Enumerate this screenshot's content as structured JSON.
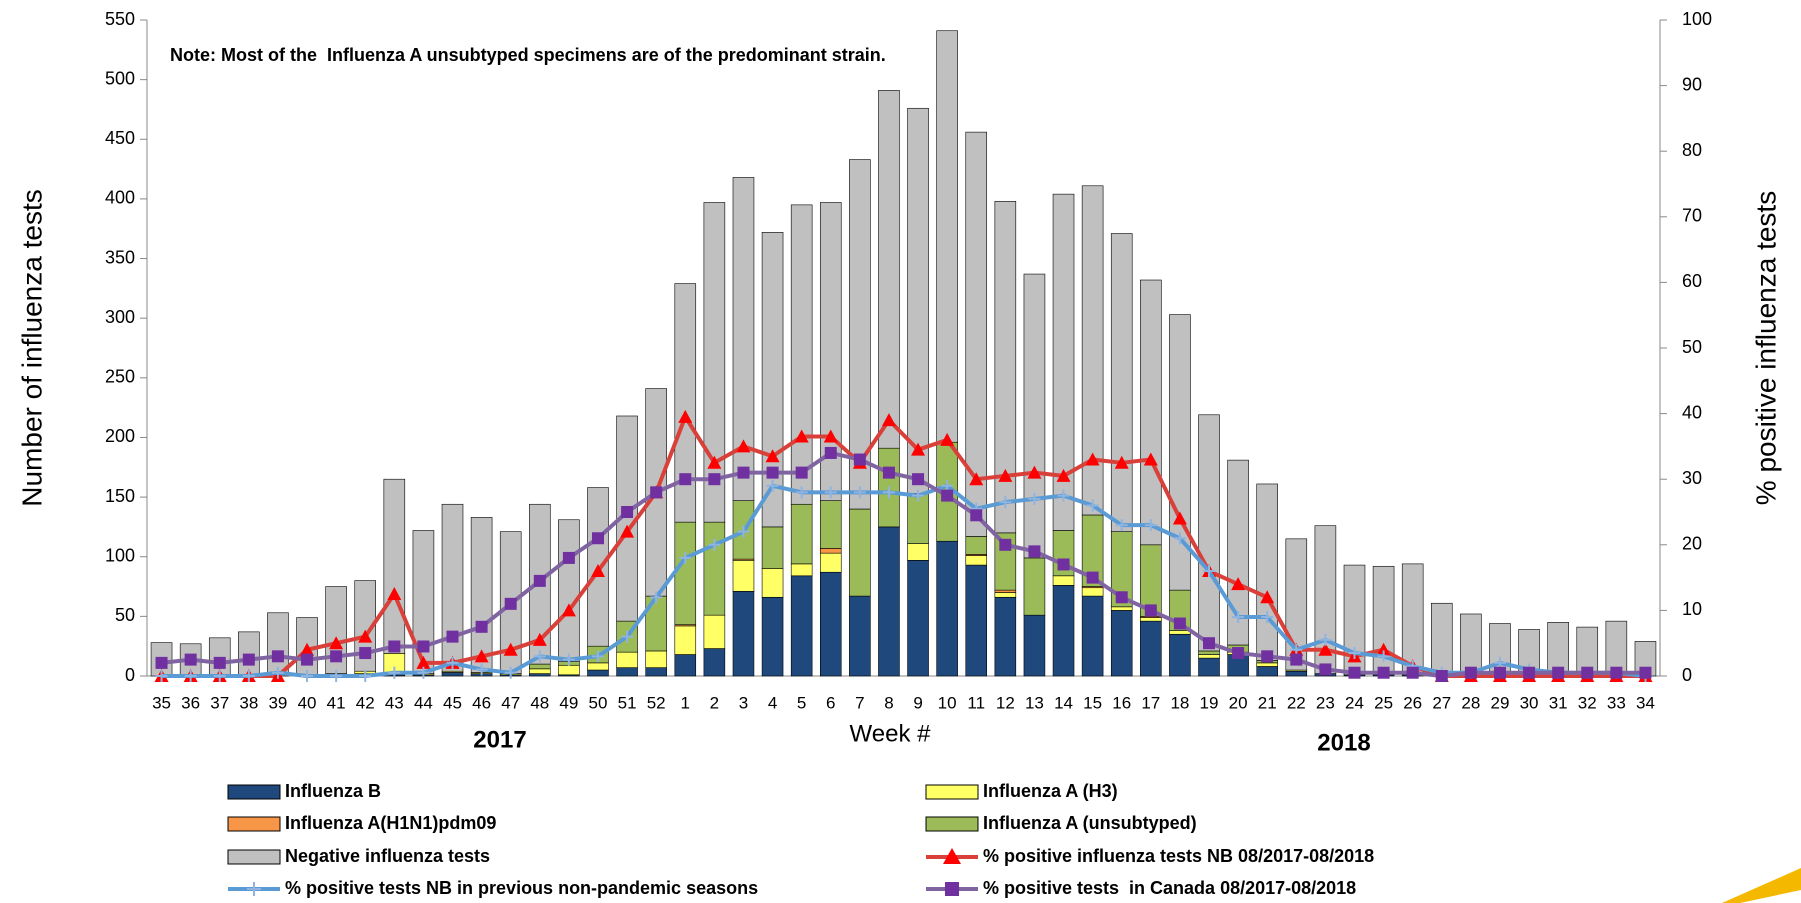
{
  "chart_data": {
    "type": "bar",
    "stacked": true,
    "note": "Note: Most of the  Influenza A unsubtyped specimens are of the predominant strain.",
    "x_label": "Week #",
    "y_label": "Number of influenza tests",
    "y2_label": "% positive influenza tests",
    "year_labels": [
      "2017",
      "2018"
    ],
    "categories": [
      "35",
      "36",
      "37",
      "38",
      "39",
      "40",
      "41",
      "42",
      "43",
      "44",
      "45",
      "46",
      "47",
      "48",
      "49",
      "50",
      "51",
      "52",
      "1",
      "2",
      "3",
      "4",
      "5",
      "6",
      "7",
      "8",
      "9",
      "10",
      "11",
      "12",
      "13",
      "14",
      "15",
      "16",
      "17",
      "18",
      "19",
      "20",
      "21",
      "22",
      "23",
      "24",
      "25",
      "26",
      "27",
      "28",
      "29",
      "30",
      "31",
      "32",
      "33",
      "34"
    ],
    "ylim": [
      0,
      550
    ],
    "yticks": [
      0,
      50,
      100,
      150,
      200,
      250,
      300,
      350,
      400,
      450,
      500,
      550
    ],
    "y2lim": [
      0,
      100
    ],
    "y2ticks": [
      0,
      10,
      20,
      30,
      40,
      50,
      60,
      70,
      80,
      90,
      100
    ],
    "series": [
      {
        "name": "Influenza B",
        "type": "bar",
        "color": "#1f497d",
        "values": [
          0,
          0,
          0,
          0,
          0,
          0,
          1,
          2,
          1,
          1,
          3,
          2,
          1,
          2,
          1,
          5,
          7,
          7,
          18,
          23,
          71,
          66,
          84,
          87,
          67,
          125,
          97,
          113,
          93,
          66,
          51,
          76,
          67,
          55,
          46,
          35,
          15,
          18,
          8,
          4,
          2,
          1,
          1,
          1,
          0,
          0,
          0,
          0,
          0,
          0,
          0,
          0
        ]
      },
      {
        "name": "Influenza A (H3)",
        "type": "bar",
        "color": "#ffff66",
        "values": [
          0,
          0,
          0,
          0,
          0,
          0,
          1,
          2,
          18,
          1,
          1,
          1,
          1,
          4,
          8,
          6,
          13,
          14,
          24,
          28,
          26,
          24,
          10,
          16,
          0,
          0,
          14,
          0,
          8,
          4,
          0,
          8,
          7,
          3,
          3,
          3,
          3,
          2,
          3,
          1,
          0,
          0,
          0,
          0,
          0,
          0,
          0,
          0,
          0,
          0,
          0,
          0
        ]
      },
      {
        "name": "Influenza A(H1N1)pdm09",
        "type": "bar",
        "color": "#f79646",
        "values": [
          0,
          0,
          0,
          0,
          0,
          0,
          0,
          0,
          0,
          0,
          0,
          0,
          0,
          0,
          0,
          0,
          0,
          0,
          1,
          0,
          1,
          0,
          0,
          4,
          0,
          0,
          0,
          0,
          1,
          2,
          0,
          0,
          1,
          0,
          1,
          0,
          0,
          0,
          0,
          0,
          0,
          0,
          0,
          0,
          0,
          0,
          0,
          0,
          0,
          0,
          0,
          0
        ]
      },
      {
        "name": "Influenza A (unsubtyped)",
        "type": "bar",
        "color": "#9bbb59",
        "values": [
          0,
          0,
          0,
          0,
          0,
          0,
          0,
          0,
          0,
          0,
          0,
          0,
          0,
          4,
          3,
          14,
          26,
          46,
          86,
          78,
          49,
          35,
          50,
          40,
          73,
          66,
          42,
          83,
          15,
          48,
          48,
          38,
          60,
          63,
          60,
          34,
          3,
          6,
          2,
          0,
          0,
          0,
          0,
          0,
          0,
          0,
          0,
          0,
          0,
          0,
          0,
          0
        ]
      },
      {
        "name": "Negative influenza tests",
        "type": "bar",
        "color": "#c0c0c0",
        "values": [
          28,
          27,
          32,
          37,
          53,
          49,
          73,
          76,
          146,
          120,
          140,
          130,
          119,
          134,
          119,
          133,
          172,
          174,
          200,
          268,
          271,
          247,
          251,
          250,
          293,
          300,
          323,
          345,
          339,
          278,
          238,
          282,
          276,
          250,
          222,
          231,
          198,
          155,
          148,
          110,
          124,
          92,
          91,
          93,
          61,
          52,
          44,
          39,
          45,
          41,
          46,
          29
        ]
      },
      {
        "name": "% positive influenza tests NB 08/2017-08/2018",
        "type": "line",
        "axis": "y2",
        "color": "#d9403a",
        "marker": "triangle",
        "marker_color": "#ff0000",
        "values": [
          0,
          0,
          0,
          0,
          0,
          4,
          5,
          6,
          12.5,
          2,
          2,
          3,
          4,
          5.5,
          10,
          16,
          22,
          28,
          39.5,
          32.5,
          35,
          33.5,
          36.5,
          36.5,
          32.5,
          39,
          34.5,
          36,
          30,
          30.5,
          31,
          30.5,
          33,
          32.5,
          33,
          24,
          16,
          14,
          12,
          4,
          4,
          3,
          4,
          1.5,
          0,
          0,
          0,
          0,
          0,
          0,
          0,
          0
        ]
      },
      {
        "name": "% positive tests NB in previous non-pandemic seasons",
        "type": "line",
        "axis": "y2",
        "color": "#5b9bd5",
        "marker": "plus",
        "marker_color": "#8fb4e0",
        "values": [
          0,
          0,
          0,
          0,
          0.5,
          0,
          0,
          0,
          0.5,
          0.5,
          2,
          1,
          0.5,
          3,
          2.5,
          3,
          6,
          12,
          18,
          20,
          22,
          29,
          28,
          28,
          28,
          28,
          27.5,
          29,
          25.5,
          26.5,
          27,
          27.5,
          26,
          23,
          23,
          21,
          16,
          9,
          9,
          4,
          5.5,
          3.5,
          3,
          1.5,
          0.5,
          0.5,
          2,
          1,
          0.5,
          0.5,
          0.5,
          0
        ]
      },
      {
        "name": "% positive tests  in Canada 08/2017-08/2018",
        "type": "line",
        "axis": "y2",
        "color": "#8064a2",
        "marker": "square",
        "marker_color": "#7030a0",
        "values": [
          2,
          2.5,
          2,
          2.5,
          3,
          2.5,
          3,
          3.5,
          4.5,
          4.5,
          6,
          7.5,
          11,
          14.5,
          18,
          21,
          25,
          28,
          30,
          30,
          31,
          31,
          31,
          34,
          33,
          31,
          30,
          27.5,
          24.5,
          20,
          19,
          17,
          15,
          12,
          10,
          8,
          5,
          3.5,
          3,
          2.5,
          1,
          0.5,
          0.5,
          0.5,
          0,
          0.5,
          0.5,
          0.5,
          0.5,
          0.5,
          0.5,
          0.5
        ]
      }
    ]
  }
}
